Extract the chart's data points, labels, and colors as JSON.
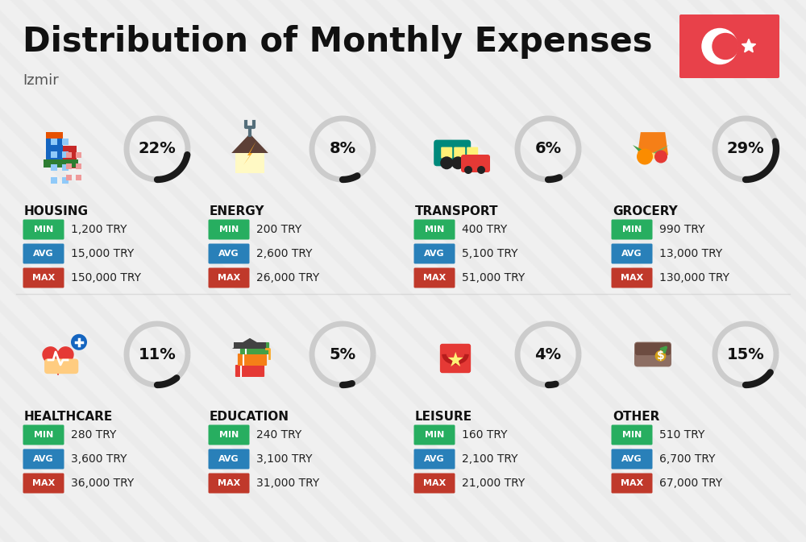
{
  "title": "Distribution of Monthly Expenses",
  "subtitle": "Izmir",
  "bg_color": "#f0f0f0",
  "title_fontsize": 30,
  "subtitle_fontsize": 13,
  "categories": [
    {
      "name": "HOUSING",
      "pct": 22,
      "min": "1,200 TRY",
      "avg": "15,000 TRY",
      "max": "150,000 TRY",
      "row": 0,
      "col": 0
    },
    {
      "name": "ENERGY",
      "pct": 8,
      "min": "200 TRY",
      "avg": "2,600 TRY",
      "max": "26,000 TRY",
      "row": 0,
      "col": 1
    },
    {
      "name": "TRANSPORT",
      "pct": 6,
      "min": "400 TRY",
      "avg": "5,100 TRY",
      "max": "51,000 TRY",
      "row": 0,
      "col": 2
    },
    {
      "name": "GROCERY",
      "pct": 29,
      "min": "990 TRY",
      "avg": "13,000 TRY",
      "max": "130,000 TRY",
      "row": 0,
      "col": 3
    },
    {
      "name": "HEALTHCARE",
      "pct": 11,
      "min": "280 TRY",
      "avg": "3,600 TRY",
      "max": "36,000 TRY",
      "row": 1,
      "col": 0
    },
    {
      "name": "EDUCATION",
      "pct": 5,
      "min": "240 TRY",
      "avg": "3,100 TRY",
      "max": "31,000 TRY",
      "row": 1,
      "col": 1
    },
    {
      "name": "LEISURE",
      "pct": 4,
      "min": "160 TRY",
      "avg": "2,100 TRY",
      "max": "21,000 TRY",
      "row": 1,
      "col": 2
    },
    {
      "name": "OTHER",
      "pct": 15,
      "min": "510 TRY",
      "avg": "6,700 TRY",
      "max": "67,000 TRY",
      "row": 1,
      "col": 3
    }
  ],
  "min_color": "#27ae60",
  "avg_color": "#2980b9",
  "max_color": "#c0392b",
  "value_text_color": "#222222",
  "category_name_color": "#111111",
  "donut_track_color": "#cccccc",
  "donut_fill_color": "#1a1a1a",
  "flag_bg": "#e8414a",
  "stripe_color": "#e8e8e8"
}
